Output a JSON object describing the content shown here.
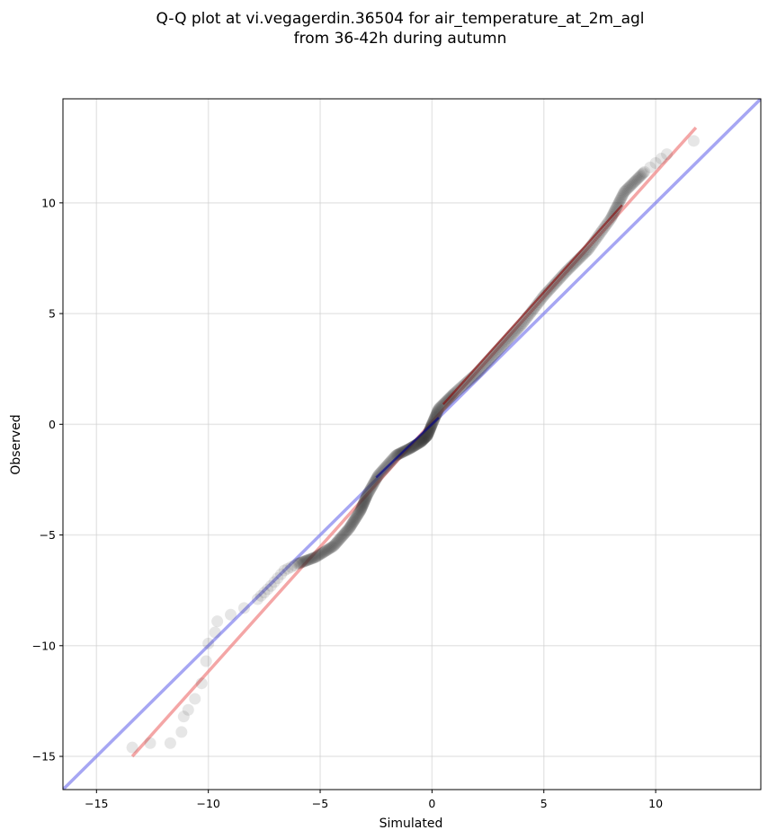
{
  "chart_data": {
    "type": "scatter",
    "title_line1": "Q-Q plot at vi.vegagerdin.36504 for air_temperature_at_2m_agl",
    "title_line2": "from 36-42h during autumn",
    "xlabel": "Simulated",
    "ylabel": "Observed",
    "xlim": [
      -16.5,
      14.7
    ],
    "ylim": [
      -16.5,
      14.7
    ],
    "xticks": [
      -15,
      -10,
      -5,
      0,
      5,
      10
    ],
    "yticks": [
      -15,
      -10,
      -5,
      0,
      5,
      10
    ],
    "xtick_labels": [
      "−15",
      "−10",
      "−5",
      "0",
      "5",
      "10"
    ],
    "ytick_labels": [
      "−15",
      "−10",
      "−5",
      "0",
      "5",
      "10"
    ],
    "grid": true,
    "colors": {
      "points": "#333333",
      "fit_line": "#f08080",
      "identity_line": "#8080ee",
      "fit_overlay": "#8b0000",
      "identity_overlay": "#00008b"
    },
    "quantile_curve": [
      [
        -13.4,
        -14.6
      ],
      [
        -12.6,
        -14.4
      ],
      [
        -11.7,
        -14.4
      ],
      [
        -11.2,
        -13.9
      ],
      [
        -11.1,
        -13.2
      ],
      [
        -10.9,
        -12.9
      ],
      [
        -10.6,
        -12.4
      ],
      [
        -10.3,
        -11.7
      ],
      [
        -10.1,
        -10.7
      ],
      [
        -10.0,
        -9.9
      ],
      [
        -9.7,
        -9.4
      ],
      [
        -9.6,
        -8.9
      ],
      [
        -9.0,
        -8.6
      ],
      [
        -8.4,
        -8.3
      ],
      [
        -7.8,
        -7.9
      ],
      [
        -7.2,
        -7.3
      ],
      [
        -6.6,
        -6.6
      ],
      [
        -6.0,
        -6.3
      ],
      [
        -5.2,
        -6.0
      ],
      [
        -4.4,
        -5.5
      ],
      [
        -3.7,
        -4.7
      ],
      [
        -3.2,
        -3.9
      ],
      [
        -2.9,
        -3.2
      ],
      [
        -2.4,
        -2.3
      ],
      [
        -1.6,
        -1.4
      ],
      [
        -1.0,
        -1.1
      ],
      [
        -0.5,
        -0.8
      ],
      [
        -0.2,
        -0.5
      ],
      [
        0.0,
        0.0
      ],
      [
        0.3,
        0.7
      ],
      [
        1.0,
        1.4
      ],
      [
        2.0,
        2.3
      ],
      [
        3.0,
        3.4
      ],
      [
        4.0,
        4.5
      ],
      [
        5.0,
        5.8
      ],
      [
        6.0,
        6.9
      ],
      [
        7.0,
        7.9
      ],
      [
        8.0,
        9.3
      ],
      [
        8.6,
        10.5
      ],
      [
        9.5,
        11.4
      ],
      [
        10.5,
        12.2
      ],
      [
        11.7,
        12.8
      ]
    ],
    "fit_line": {
      "x": [
        -13.4,
        11.8
      ],
      "y": [
        -15.0,
        13.4
      ]
    },
    "identity_line": {
      "x": [
        -16.5,
        14.7
      ],
      "y": [
        -16.5,
        14.7
      ]
    }
  }
}
